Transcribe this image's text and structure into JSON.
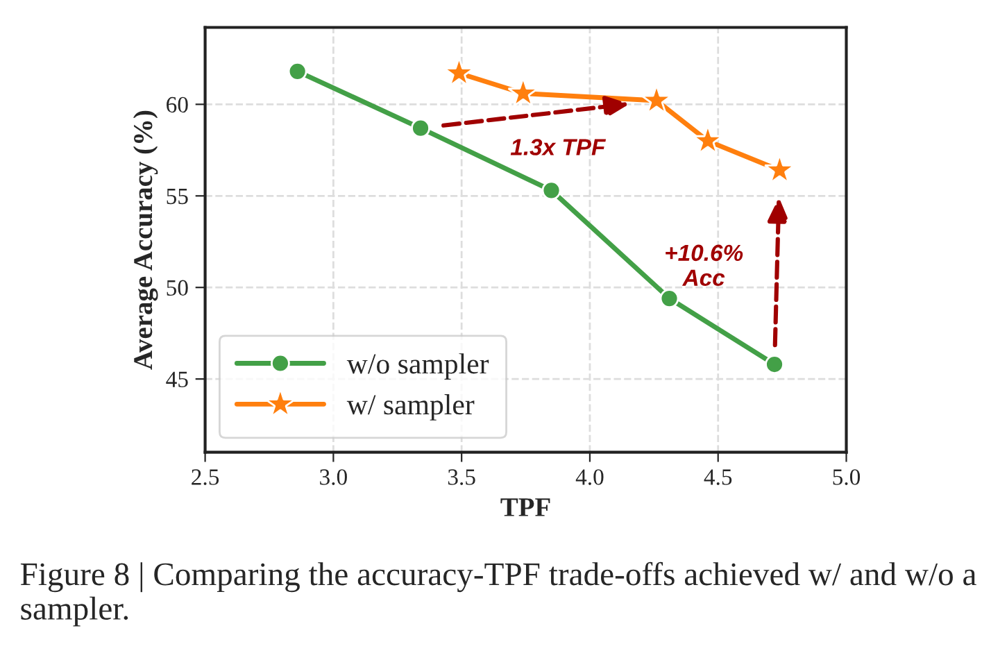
{
  "chart_data": {
    "type": "line",
    "xlabel": "TPF",
    "ylabel": "Average Accuracy (%)",
    "x": [
      2.86,
      3.34,
      3.85,
      4.31,
      4.72
    ],
    "series": [
      {
        "name": "w/o sampler",
        "color": "#43a047",
        "marker": "circle",
        "values": [
          61.8,
          58.7,
          55.3,
          49.4,
          45.8
        ]
      },
      {
        "name": "w/ sampler",
        "color": "#ff7f0e",
        "marker": "star",
        "x": [
          3.49,
          3.74,
          4.26,
          4.46,
          4.74
        ],
        "values": [
          61.7,
          60.6,
          60.2,
          58.0,
          56.4
        ]
      }
    ],
    "xlim": [
      2.5,
      5.0
    ],
    "xticks": [
      {
        "value": 2.5,
        "label": "2.5"
      },
      {
        "value": 3.0,
        "label": "3.0"
      },
      {
        "value": 3.5,
        "label": "3.5"
      },
      {
        "value": 4.0,
        "label": "4.0"
      },
      {
        "value": 4.5,
        "label": "4.5"
      },
      {
        "value": 5.0,
        "label": "5.0"
      }
    ],
    "ylim": [
      41,
      64.2
    ],
    "yticks": [
      45,
      50,
      55,
      60
    ],
    "grid": true,
    "legend": "bottom left",
    "line_style": "solid",
    "annotations": [
      "1.3x TPF",
      "+10.6%\nAcc",
      "Figure 8 | Comparing the accuracy-TPF trade-offs achieved w/ and w/o a sampler."
    ]
  }
}
